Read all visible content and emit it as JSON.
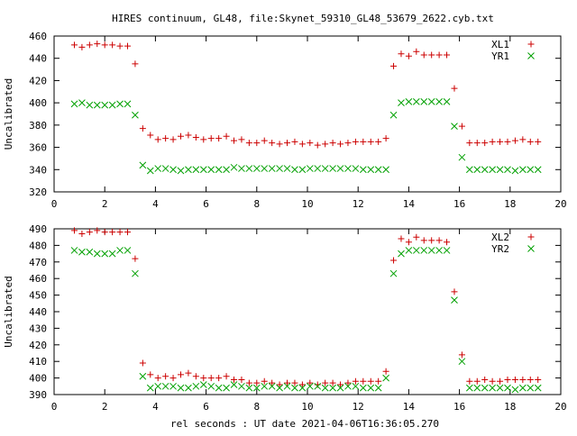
{
  "title": "HIRES continuum, GL48, file:Skynet_59310_GL48_53679_2622.cyb.txt",
  "xlabel": "rel seconds : UT date 2021-04-06T16:36:05.270",
  "colors": {
    "plus": "#cc0000",
    "cross": "#00a000"
  },
  "chart_data": [
    {
      "type": "scatter",
      "ylabel": "Uncalibrated",
      "xlim": [
        0,
        20
      ],
      "ylim": [
        320,
        460
      ],
      "xticks": [
        "0",
        "2",
        "4",
        "6",
        "8",
        "10",
        "12",
        "14",
        "16",
        "18",
        "20"
      ],
      "yticks": [
        "320",
        "340",
        "360",
        "380",
        "400",
        "420",
        "440",
        "460"
      ],
      "legend_position": "top-right",
      "x": [
        0.8,
        1.1,
        1.4,
        1.7,
        2.0,
        2.3,
        2.6,
        2.9,
        3.2,
        3.5,
        3.8,
        4.1,
        4.4,
        4.7,
        5.0,
        5.3,
        5.6,
        5.9,
        6.2,
        6.5,
        6.8,
        7.1,
        7.4,
        7.7,
        8.0,
        8.3,
        8.6,
        8.9,
        9.2,
        9.5,
        9.8,
        10.1,
        10.4,
        10.7,
        11.0,
        11.3,
        11.6,
        11.9,
        12.2,
        12.5,
        12.8,
        13.1,
        13.4,
        13.7,
        14.0,
        14.3,
        14.6,
        14.9,
        15.2,
        15.5,
        15.8,
        16.1,
        16.4,
        16.7,
        17.0,
        17.3,
        17.6,
        17.9,
        18.2,
        18.5,
        18.8,
        19.1
      ],
      "series": [
        {
          "name": "XL1",
          "marker": "plus",
          "values": [
            452,
            450,
            452,
            453,
            452,
            452,
            451,
            451,
            435,
            377,
            371,
            367,
            368,
            367,
            370,
            371,
            369,
            367,
            368,
            368,
            370,
            366,
            367,
            364,
            364,
            366,
            364,
            363,
            364,
            365,
            363,
            364,
            362,
            363,
            364,
            363,
            364,
            365,
            365,
            365,
            365,
            368,
            433,
            444,
            442,
            446,
            443,
            443,
            443,
            443,
            413,
            379,
            364,
            364,
            364,
            365,
            365,
            365,
            366,
            367,
            365,
            365
          ]
        },
        {
          "name": "YR1",
          "marker": "cross",
          "values": [
            399,
            400,
            398,
            398,
            398,
            398,
            399,
            399,
            389,
            344,
            339,
            341,
            341,
            340,
            339,
            340,
            340,
            340,
            340,
            340,
            340,
            342,
            341,
            341,
            341,
            341,
            341,
            341,
            341,
            340,
            340,
            341,
            341,
            341,
            341,
            341,
            341,
            341,
            340,
            340,
            340,
            340,
            389,
            400,
            401,
            401,
            401,
            401,
            401,
            401,
            379,
            351,
            340,
            340,
            340,
            340,
            340,
            340,
            339,
            340,
            340,
            340
          ]
        }
      ]
    },
    {
      "type": "scatter",
      "ylabel": "Uncalibrated",
      "xlim": [
        0,
        20
      ],
      "ylim": [
        390,
        490
      ],
      "xticks": [
        "0",
        "2",
        "4",
        "6",
        "8",
        "10",
        "12",
        "14",
        "16",
        "18",
        "20"
      ],
      "yticks": [
        "390",
        "400",
        "410",
        "420",
        "430",
        "440",
        "450",
        "460",
        "470",
        "480",
        "490"
      ],
      "legend_position": "top-right",
      "x": [
        0.8,
        1.1,
        1.4,
        1.7,
        2.0,
        2.3,
        2.6,
        2.9,
        3.2,
        3.5,
        3.8,
        4.1,
        4.4,
        4.7,
        5.0,
        5.3,
        5.6,
        5.9,
        6.2,
        6.5,
        6.8,
        7.1,
        7.4,
        7.7,
        8.0,
        8.3,
        8.6,
        8.9,
        9.2,
        9.5,
        9.8,
        10.1,
        10.4,
        10.7,
        11.0,
        11.3,
        11.6,
        11.9,
        12.2,
        12.5,
        12.8,
        13.1,
        13.4,
        13.7,
        14.0,
        14.3,
        14.6,
        14.9,
        15.2,
        15.5,
        15.8,
        16.1,
        16.4,
        16.7,
        17.0,
        17.3,
        17.6,
        17.9,
        18.2,
        18.5,
        18.8,
        19.1
      ],
      "series": [
        {
          "name": "XL2",
          "marker": "plus",
          "values": [
            489,
            487,
            488,
            489,
            488,
            488,
            488,
            488,
            472,
            409,
            402,
            400,
            401,
            400,
            402,
            403,
            401,
            400,
            400,
            400,
            401,
            399,
            399,
            397,
            397,
            398,
            397,
            396,
            397,
            397,
            396,
            397,
            396,
            397,
            397,
            396,
            397,
            398,
            398,
            398,
            398,
            404,
            471,
            484,
            482,
            485,
            483,
            483,
            483,
            482,
            452,
            414,
            398,
            398,
            399,
            398,
            398,
            399,
            399,
            399,
            399,
            399
          ]
        },
        {
          "name": "YR2",
          "marker": "cross",
          "values": [
            477,
            476,
            476,
            475,
            475,
            475,
            477,
            477,
            463,
            401,
            394,
            395,
            395,
            395,
            394,
            394,
            395,
            396,
            395,
            394,
            394,
            396,
            395,
            394,
            394,
            395,
            395,
            394,
            395,
            394,
            394,
            395,
            395,
            394,
            394,
            394,
            395,
            395,
            394,
            394,
            394,
            400,
            463,
            475,
            477,
            477,
            477,
            477,
            477,
            477,
            447,
            410,
            394,
            394,
            394,
            394,
            394,
            394,
            393,
            394,
            394,
            394
          ]
        }
      ]
    }
  ]
}
